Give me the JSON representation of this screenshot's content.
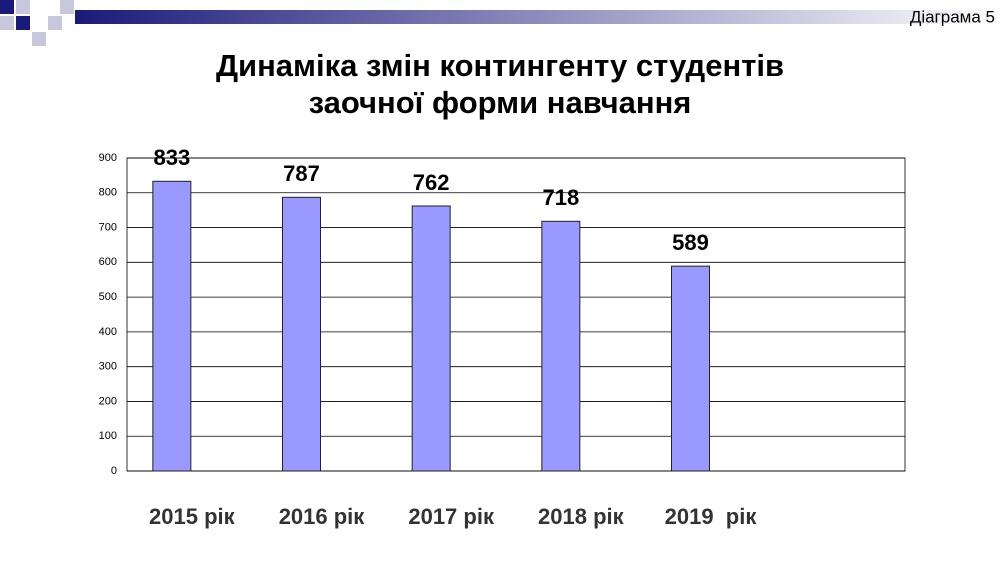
{
  "label": "Діаграма 5",
  "chart_data": {
    "type": "bar",
    "title": [
      "Динаміка змін контингенту студентів",
      "заочної форми навчання"
    ],
    "categories": [
      "2015 рік",
      "2016 рік",
      "2017 рік",
      "2018 рік",
      "2019  рік",
      null
    ],
    "values": [
      833,
      787,
      762,
      718,
      589,
      null
    ],
    "color": "#9999ff",
    "ylim": [
      0,
      900
    ],
    "yticks": [
      0,
      100,
      200,
      300,
      400,
      500,
      600,
      700,
      800,
      900
    ],
    "grid": true
  }
}
